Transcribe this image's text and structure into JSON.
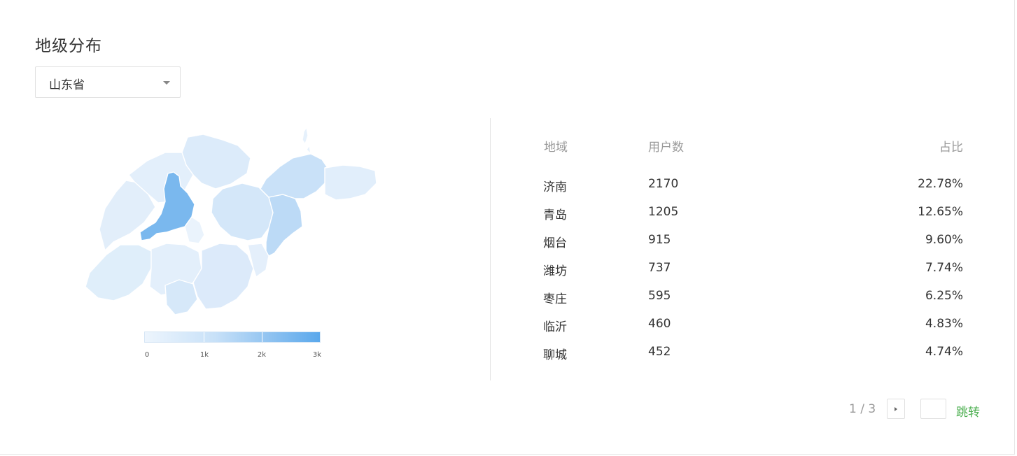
{
  "panel": {
    "title": "地级分布",
    "province_select": {
      "value": "山东省"
    }
  },
  "map": {
    "legend": {
      "ticks": [
        "0",
        "1k",
        "2k",
        "3k"
      ],
      "min_color": "#edf5fd",
      "max_color": "#5aa8ec"
    },
    "highlight_color": "#7ab8ee"
  },
  "table": {
    "headers": {
      "region": "地域",
      "users": "用户数",
      "share": "占比"
    },
    "rows": [
      {
        "region": "济南",
        "users": "2170",
        "share": "22.78%"
      },
      {
        "region": "青岛",
        "users": "1205",
        "share": "12.65%"
      },
      {
        "region": "烟台",
        "users": "915",
        "share": "9.60%"
      },
      {
        "region": "潍坊",
        "users": "737",
        "share": "7.74%"
      },
      {
        "region": "枣庄",
        "users": "595",
        "share": "6.25%"
      },
      {
        "region": "临沂",
        "users": "460",
        "share": "4.83%"
      },
      {
        "region": "聊城",
        "users": "452",
        "share": "4.74%"
      }
    ]
  },
  "pagination": {
    "page_text": "1 / 3",
    "jump_input_value": "",
    "jump_label": "跳转",
    "accent_color": "#4caf50"
  }
}
